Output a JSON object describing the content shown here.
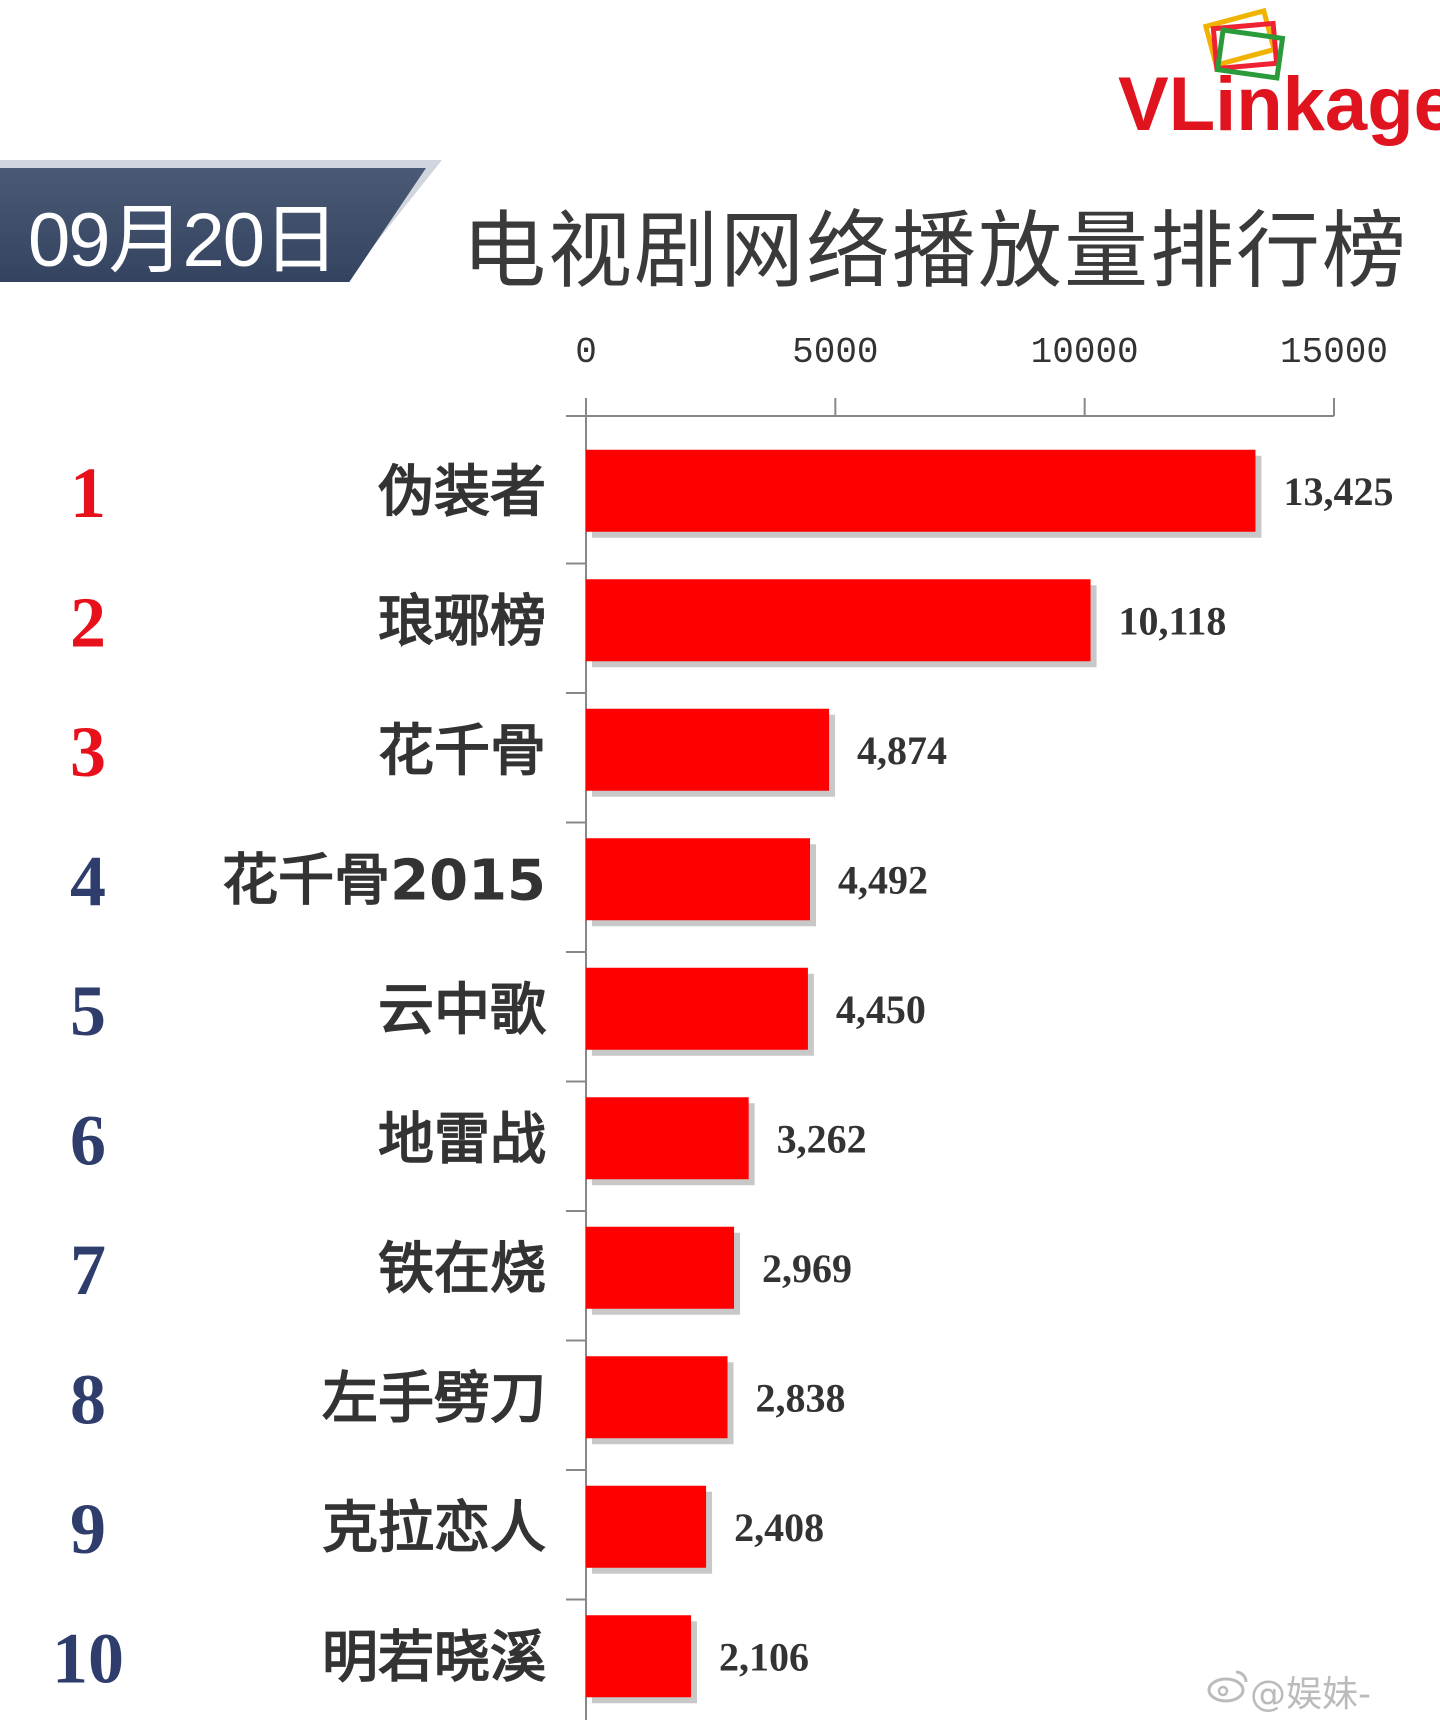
{
  "logo": {
    "text": "VLinkage"
  },
  "header": {
    "date": "09月20日",
    "title": "电视剧网络播放量排行榜"
  },
  "watermark": "@娱妹-",
  "colors": {
    "bar": "#ff0000",
    "rank_top": "#e8101a",
    "rank_other": "#2e3d6b",
    "banner": "#3a4a66"
  },
  "chart_data": {
    "type": "bar",
    "orientation": "horizontal",
    "xlim": [
      0,
      15000
    ],
    "xticks": [
      "0",
      "5000",
      "10000",
      "15000"
    ],
    "ranks": [
      "1",
      "2",
      "3",
      "4",
      "5",
      "6",
      "7",
      "8",
      "9",
      "10"
    ],
    "categories": [
      "伪装者",
      "琅琊榜",
      "花千骨",
      "花千骨2015",
      "云中歌",
      "地雷战",
      "铁在烧",
      "左手劈刀",
      "克拉恋人",
      "明若晓溪"
    ],
    "values": [
      13425,
      10118,
      4874,
      4492,
      4450,
      3262,
      2969,
      2838,
      2408,
      2106
    ],
    "value_labels": [
      "13,425",
      "10,118",
      "4,874",
      "4,492",
      "4,450",
      "3,262",
      "2,969",
      "2,838",
      "2,408",
      "2,106"
    ]
  }
}
